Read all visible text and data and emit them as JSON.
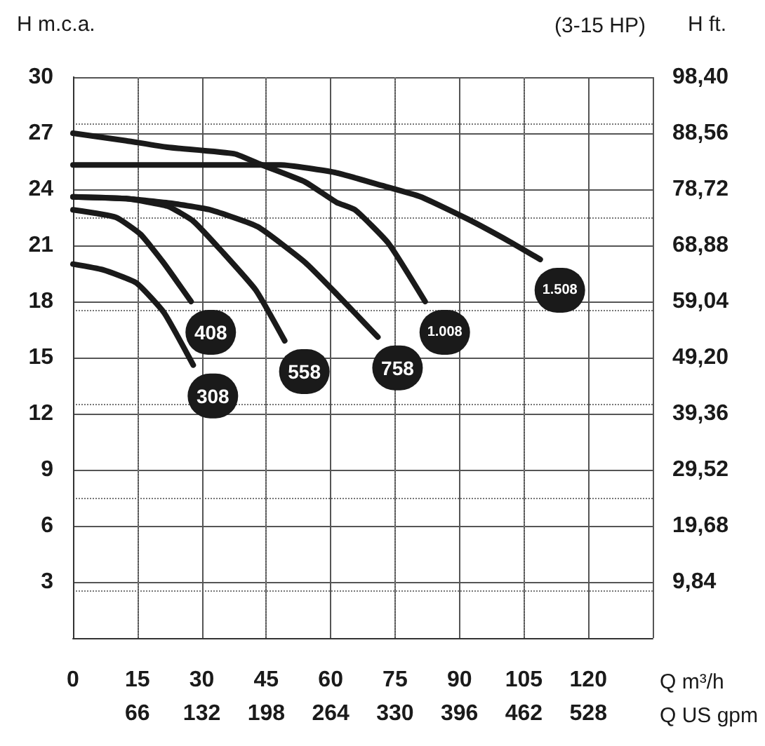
{
  "chart_data": {
    "type": "line",
    "title": "(3-15 HP)",
    "ylabel": "H m.c.a.",
    "y2label": "H ft.",
    "xlabel": "Q m³/h",
    "x2label": "Q US gpm",
    "xlim": [
      0,
      135
    ],
    "xticks": [
      0,
      15,
      30,
      45,
      60,
      75,
      90,
      105,
      120,
      {
        "value": 135,
        "label": null
      }
    ],
    "x2lim": [
      0,
      594
    ],
    "x2ticks": [
      66,
      132,
      198,
      264,
      330,
      396,
      462,
      528
    ],
    "ylim": [
      0,
      30
    ],
    "yticks": [
      {
        "value": 0,
        "label": null
      },
      3,
      6,
      9,
      12,
      15,
      18,
      21,
      24,
      27,
      30
    ],
    "y2lim": [
      0,
      98.4
    ],
    "y2ticks": [
      {
        "value": 9.84,
        "label": "9,84"
      },
      {
        "value": 19.68,
        "label": "19,68"
      },
      {
        "value": 29.52,
        "label": "29,52"
      },
      {
        "value": 39.36,
        "label": "39,36"
      },
      {
        "value": 49.2,
        "label": "49,20"
      },
      {
        "value": 59.04,
        "label": "59,04"
      },
      {
        "value": 68.88,
        "label": "68,88"
      },
      {
        "value": 78.72,
        "label": "78,72"
      },
      {
        "value": 88.56,
        "label": "88,56"
      },
      {
        "value": 98.4,
        "label": "98,40"
      }
    ],
    "grid": true,
    "legend": false,
    "marker": "none",
    "line_style": "solid",
    "series": [
      {
        "name": "308",
        "color": "#1a1a1a",
        "x": [
          0,
          6.9,
          14.7,
          21.2,
          28
        ],
        "values": [
          20.0,
          19.7,
          19.0,
          17.4,
          14.6
        ]
      },
      {
        "name": "408",
        "color": "#1a1a1a",
        "x": [
          0,
          10,
          15.7,
          21,
          27.5
        ],
        "values": [
          22.9,
          22.5,
          21.6,
          20.1,
          18.0
        ]
      },
      {
        "name": "558",
        "color": "#1a1a1a",
        "x": [
          0,
          12.4,
          22,
          28,
          35,
          42.6,
          49.3
        ],
        "values": [
          23.6,
          23.5,
          23.1,
          22.3,
          20.6,
          18.6,
          15.9
        ]
      },
      {
        "name": "758",
        "color": "#1a1a1a",
        "x": [
          0,
          12.4,
          23,
          32,
          43,
          54,
          61.4,
          71
        ],
        "values": [
          23.6,
          23.5,
          23.25,
          22.9,
          22.0,
          20.1,
          18.4,
          16.1
        ]
      },
      {
        "name": "1.008",
        "color": "#1a1a1a",
        "x": [
          0,
          12.4,
          22,
          37.6,
          44,
          54,
          61.4,
          65.7,
          73.5,
          82
        ],
        "values": [
          27.0,
          26.6,
          26.25,
          25.9,
          25.3,
          24.4,
          23.3,
          22.9,
          21.1,
          18.0
        ]
      },
      {
        "name": "1.508",
        "color": "#1a1a1a",
        "x": [
          0,
          20,
          40,
          48.4,
          61,
          72,
          81,
          92,
          101.7,
          108.8
        ],
        "values": [
          25.3,
          25.3,
          25.3,
          25.3,
          24.9,
          24.2,
          23.6,
          22.4,
          21.2,
          20.25
        ]
      }
    ]
  }
}
